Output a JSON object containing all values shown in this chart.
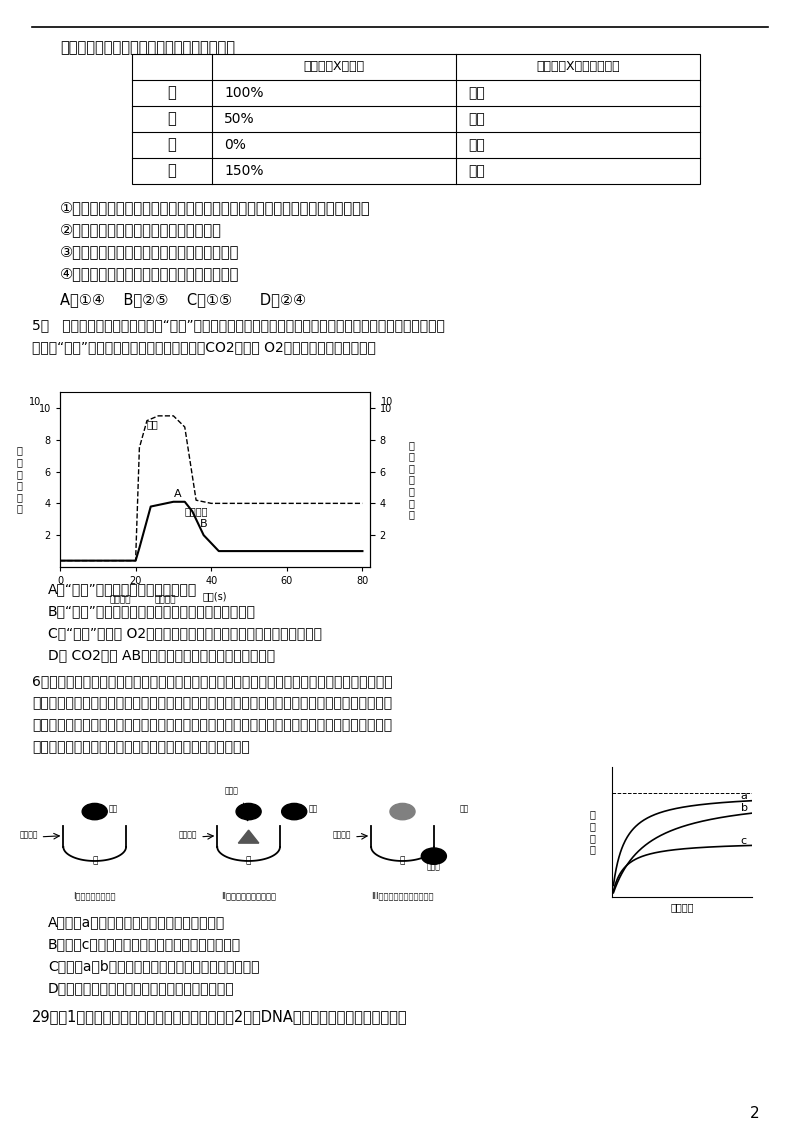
{
  "bg_color": "#ffffff",
  "page_number": "2",
  "table_headers": [
    "",
    "相对于酶X的活性",
    "相对于酶X的氨基酸数目"
  ],
  "table_rows": [
    [
      "甲",
      "100%",
      "不变"
    ],
    [
      "乙",
      "50%",
      "不变"
    ],
    [
      "丙",
      "0%",
      "减少"
    ],
    [
      "丁",
      "150%",
      "不变"
    ]
  ],
  "text_color": "#000000"
}
